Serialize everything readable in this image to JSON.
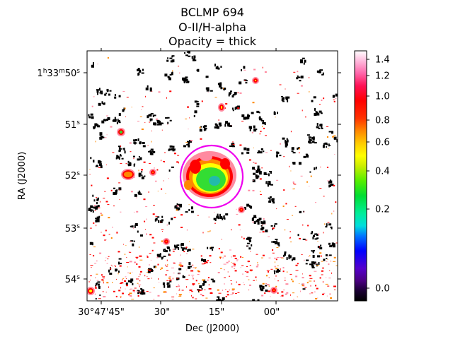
{
  "chart_data": {
    "type": "heatmap",
    "title_lines": [
      "BCLMP 694",
      "O-II/H-alpha",
      "Opacity = thick"
    ],
    "xlabel": "Dec (J2000)",
    "ylabel": "RA (J2000)",
    "x_ticks": [
      "30°47'45\"",
      "30\"",
      "15\"",
      "00\""
    ],
    "y_ticks": [
      {
        "main": "1",
        "h": "h",
        "m_val": "33",
        "m": "m",
        "s_val": "50",
        "s": "s"
      },
      {
        "main": "51",
        "s": "s"
      },
      {
        "main": "52",
        "s": "s"
      },
      {
        "main": "53",
        "s": "s"
      },
      {
        "main": "54",
        "s": "s"
      }
    ],
    "colorbar": {
      "colormap": "gist_ncar-like (black-purple-blue-cyan-green-yellow-orange-red-pink-white)",
      "ticks": [
        {
          "value": 1.4,
          "label": "1.4"
        },
        {
          "value": 1.2,
          "label": "1.2"
        },
        {
          "value": 1.0,
          "label": "1.0"
        },
        {
          "value": 0.8,
          "label": "0.8"
        },
        {
          "value": 0.6,
          "label": "0.6"
        },
        {
          "value": 0.4,
          "label": "0.4"
        },
        {
          "value": 0.2,
          "label": "0.2"
        },
        {
          "value": 0.0,
          "label": "0.0"
        }
      ],
      "range": [
        -0.05,
        1.45
      ]
    },
    "aperture": {
      "shape": "circle",
      "color": "#ee00ee"
    },
    "colors": {
      "black": "#000000",
      "purple": "#7a00ad",
      "blue": "#0000ff",
      "cyan": "#00e5e5",
      "green": "#33dd33",
      "yellow": "#ffff00",
      "orange": "#ff8800",
      "red": "#ff0000",
      "pink": "#ff8aa0"
    }
  }
}
